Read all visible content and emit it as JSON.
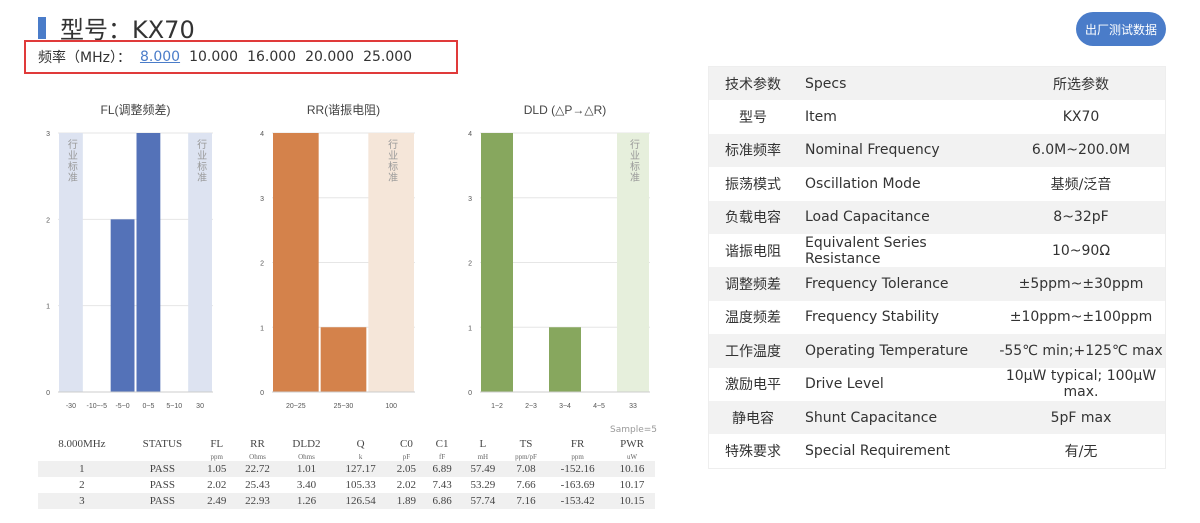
{
  "header": {
    "title": "型号：KX70",
    "button": "出厂测试数据"
  },
  "frequency": {
    "label": "频率（MHz）：",
    "options": [
      "8.000",
      "10.000",
      "16.000",
      "20.000",
      "25.000"
    ],
    "selected": "8.000"
  },
  "chart_data": [
    {
      "type": "bar",
      "title": "FL(调整频差)",
      "categories": [
        "-30",
        "-10~-5",
        "-5~0",
        "0~5",
        "5~10",
        "30"
      ],
      "values": [
        null,
        0,
        2,
        3,
        0,
        null
      ],
      "band_categories": [
        "-30",
        "30"
      ],
      "band_label": "行业标准",
      "ylim": [
        0,
        3
      ],
      "yticks": [
        "0",
        "1",
        "2",
        "3"
      ],
      "color": "#5472b8",
      "band_color": "#dde3f1",
      "grid": true
    },
    {
      "type": "bar",
      "title": "RR(谐振电阻)",
      "categories": [
        "20~25",
        "25~30",
        "100"
      ],
      "values": [
        4,
        1,
        null
      ],
      "band_categories": [
        "100"
      ],
      "band_label": "行业标准",
      "ylim": [
        0,
        4
      ],
      "yticks": [
        "0",
        "1",
        "2",
        "3",
        "4"
      ],
      "color": "#d4824b",
      "band_color": "#f5e6d9",
      "grid": true
    },
    {
      "type": "bar",
      "title": "DLD (△P→△R)",
      "categories": [
        "1~2",
        "2~3",
        "3~4",
        "4~5",
        "33"
      ],
      "values": [
        4,
        0,
        1,
        0,
        null
      ],
      "band_categories": [
        "33"
      ],
      "band_label": "行业标准",
      "ylim": [
        0,
        4
      ],
      "yticks": [
        "0",
        "1",
        "2",
        "3",
        "4"
      ],
      "color": "#87a75e",
      "band_color": "#e6efdc",
      "grid": true
    }
  ],
  "test": {
    "sample": "Sample=5",
    "headers": [
      "8.000MHz",
      "STATUS",
      "FL",
      "RR",
      "DLD2",
      "Q",
      "C0",
      "C1",
      "L",
      "TS",
      "FR",
      "PWR"
    ],
    "units": [
      "",
      "",
      "ppm",
      "Ohms",
      "Ohms",
      "k",
      "pF",
      "fF",
      "mH",
      "ppm/pF",
      "ppm",
      "uW"
    ],
    "rows": [
      [
        "1",
        "PASS",
        "1.05",
        "22.72",
        "1.01",
        "127.17",
        "2.05",
        "6.89",
        "57.49",
        "7.08",
        "-152.16",
        "10.16"
      ],
      [
        "2",
        "PASS",
        "2.02",
        "25.43",
        "3.40",
        "105.33",
        "2.02",
        "7.43",
        "53.29",
        "7.66",
        "-163.69",
        "10.17"
      ],
      [
        "3",
        "PASS",
        "2.49",
        "22.93",
        "1.26",
        "126.54",
        "1.89",
        "6.86",
        "57.74",
        "7.16",
        "-153.42",
        "10.15"
      ]
    ]
  },
  "specs": [
    [
      "技术参数",
      "Specs",
      "所选参数"
    ],
    [
      "型号",
      "Item",
      "KX70"
    ],
    [
      "标准频率",
      "Nominal Frequency",
      "6.0M~200.0M"
    ],
    [
      "振荡模式",
      "Oscillation Mode",
      "基频/泛音"
    ],
    [
      "负载电容",
      "Load Capacitance",
      "8~32pF"
    ],
    [
      "谐振电阻",
      "Equivalent Series Resistance",
      "10~90Ω"
    ],
    [
      "调整频差",
      "Frequency Tolerance",
      "±5ppm~±30ppm"
    ],
    [
      "温度频差",
      "Frequency Stability",
      "±10ppm~±100ppm"
    ],
    [
      "工作温度",
      "Operating Temperature",
      "-55℃ min;+125℃ max"
    ],
    [
      "激励电平",
      "Drive Level",
      "10μW typical; 100μW max."
    ],
    [
      "静电容",
      "Shunt Capacitance",
      "5pF max"
    ],
    [
      "特殊要求",
      "Special Requirement",
      "有/无"
    ]
  ]
}
